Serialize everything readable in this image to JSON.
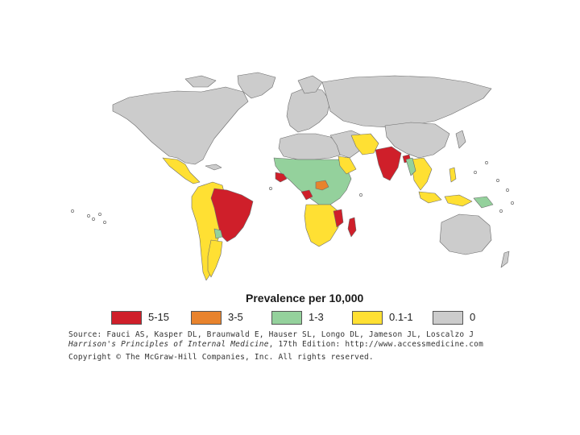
{
  "legend": {
    "title": "Prevalence per 10,000",
    "items": [
      {
        "label": "5-15",
        "color": "#cf1f2a"
      },
      {
        "label": "3-5",
        "color": "#e8832d"
      },
      {
        "label": "1-3",
        "color": "#94d19c"
      },
      {
        "label": "0.1-1",
        "color": "#ffe033"
      },
      {
        "label": "0",
        "color": "#cccccc"
      }
    ]
  },
  "source": {
    "line1": "Source: Fauci AS, Kasper DL, Braunwald E, Hauser SL, Longo DL, Jameson JL, Loscalzo J",
    "line2_italic": "Harrison's Principles of Internal Medicine",
    "line2_rest": ", 17th Edition: http://www.accessmedicine.com",
    "copyright": "Copyright © The McGraw-Hill Companies, Inc. All rights reserved."
  },
  "colors": {
    "land_none": "#cccccc",
    "high": "#cf1f2a",
    "mid": "#e8832d",
    "low": "#94d19c",
    "verylow": "#ffe033",
    "border": "#6b6b6b"
  }
}
